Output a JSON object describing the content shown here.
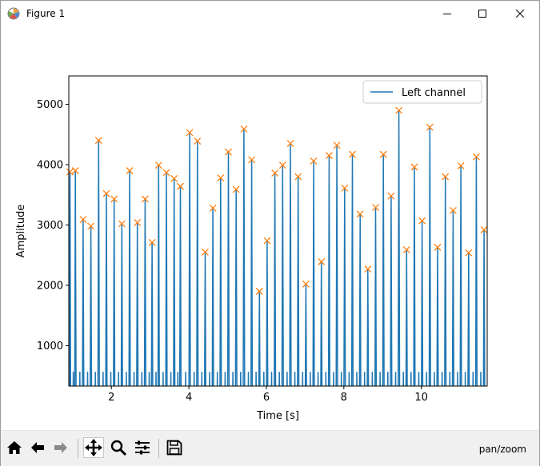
{
  "window": {
    "title": "Figure 1",
    "icon": "matplotlib-figure-icon",
    "controls": [
      "minimize-icon",
      "maximize-icon",
      "close-icon"
    ]
  },
  "toolbar": {
    "buttons": [
      "home-icon",
      "back-arrow-icon",
      "forward-arrow-icon",
      "pan-move-icon",
      "zoom-magnifier-icon",
      "configure-subplots-icon",
      "save-floppy-icon"
    ],
    "active": "pan-move-icon",
    "mode_text": "pan/zoom"
  },
  "chart_data": {
    "type": "line",
    "xlabel": "Time [s]",
    "ylabel": "Amplitude",
    "xlim": [
      0.9,
      11.7
    ],
    "ylim": [
      330,
      5470
    ],
    "xticks": [
      2,
      4,
      6,
      8,
      10
    ],
    "xtick_labels": [
      "2",
      "4",
      "6",
      "8",
      "10"
    ],
    "yticks": [
      1000,
      2000,
      3000,
      4000,
      5000
    ],
    "ytick_labels": [
      "1000",
      "2000",
      "3000",
      "4000",
      "5000"
    ],
    "grid": false,
    "legend_position": "top-right",
    "series": [
      {
        "name": "Left channel",
        "color": "#1f77b4",
        "style": "line"
      },
      {
        "color": "#ff7f0e",
        "style": "x-markers"
      }
    ],
    "peaks": {
      "x": [
        0.93,
        1.07,
        1.27,
        1.47,
        1.67,
        1.87,
        2.07,
        2.27,
        2.47,
        2.67,
        2.87,
        3.05,
        3.22,
        3.42,
        3.62,
        3.78,
        4.02,
        4.22,
        4.42,
        4.62,
        4.82,
        5.02,
        5.22,
        5.42,
        5.62,
        5.82,
        6.02,
        6.22,
        6.42,
        6.62,
        6.82,
        7.02,
        7.22,
        7.42,
        7.62,
        7.82,
        8.02,
        8.22,
        8.42,
        8.62,
        8.82,
        9.02,
        9.22,
        9.42,
        9.62,
        9.82,
        10.02,
        10.22,
        10.42,
        10.62,
        10.82,
        11.02,
        11.22,
        11.42,
        11.62
      ],
      "y": [
        3880,
        3900,
        3090,
        2980,
        4400,
        3520,
        3430,
        3020,
        3900,
        3040,
        3430,
        2710,
        3990,
        3870,
        3770,
        3640,
        4530,
        4390,
        2550,
        3280,
        3780,
        4210,
        3590,
        4590,
        4080,
        1900,
        2740,
        3860,
        3990,
        4350,
        3800,
        2020,
        4060,
        2390,
        4150,
        4320,
        3610,
        4170,
        3180,
        2270,
        3290,
        4170,
        3480,
        4900,
        2590,
        3960,
        3070,
        4620,
        2630,
        3800,
        3240,
        3980,
        2540,
        4130,
        2920
      ]
    }
  }
}
